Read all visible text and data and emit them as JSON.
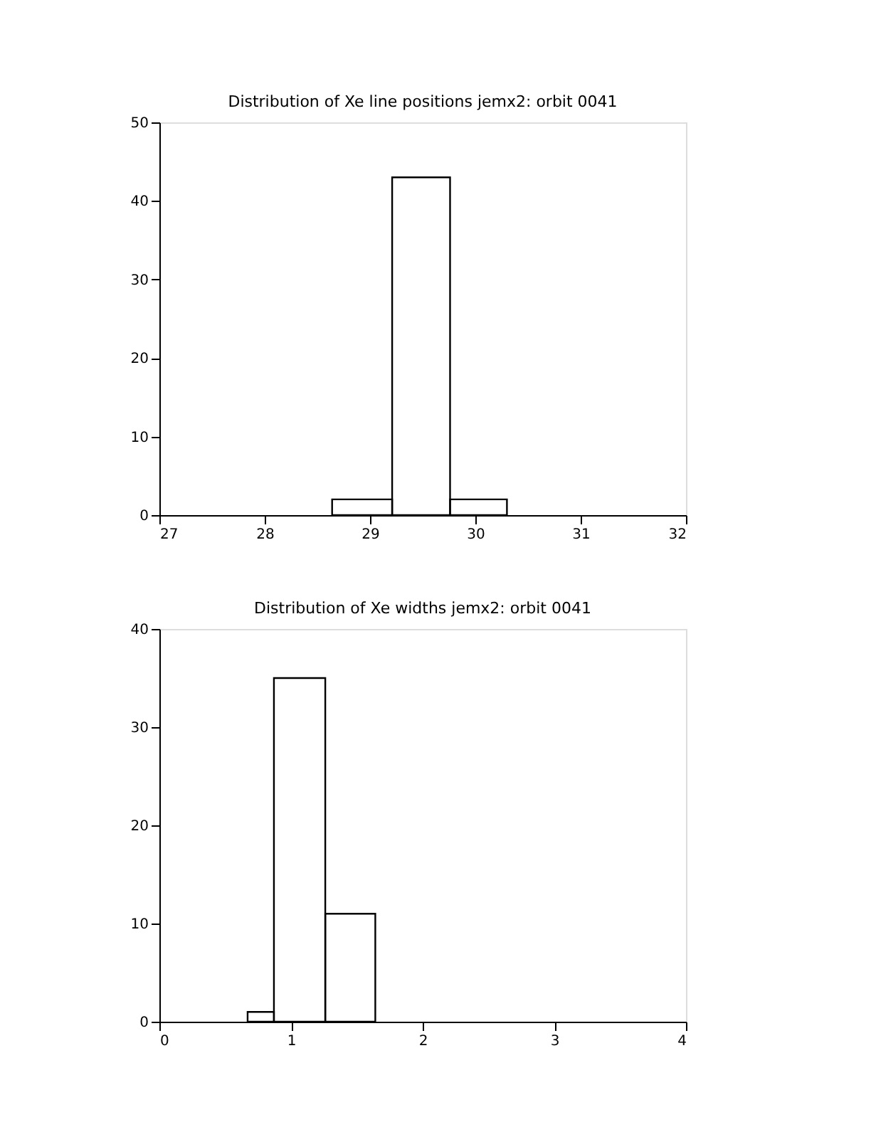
{
  "chart_data": [
    {
      "type": "histogram",
      "title": "Distribution of Xe line positions jemx2: orbit 0041",
      "bins": [
        28.64,
        29.21,
        29.76,
        30.3
      ],
      "values": [
        2,
        43,
        2
      ],
      "color": "#000000",
      "xlim": [
        27,
        32
      ],
      "xticks": [
        27,
        28,
        29,
        30,
        31,
        32
      ],
      "ylim": [
        0,
        50
      ],
      "yticks": [
        0,
        10,
        20,
        30,
        40,
        50
      ],
      "grid": false
    },
    {
      "type": "histogram",
      "title": "Distribution of Xe widths jemx2: orbit 0041",
      "bins": [
        0.67,
        0.87,
        1.26,
        1.64
      ],
      "values": [
        1,
        35,
        11
      ],
      "color": "#000000",
      "xlim": [
        0,
        4
      ],
      "xticks": [
        0,
        1,
        2,
        3,
        4
      ],
      "ylim": [
        0,
        40
      ],
      "yticks": [
        0,
        10,
        20,
        30,
        40
      ],
      "grid": false
    }
  ]
}
